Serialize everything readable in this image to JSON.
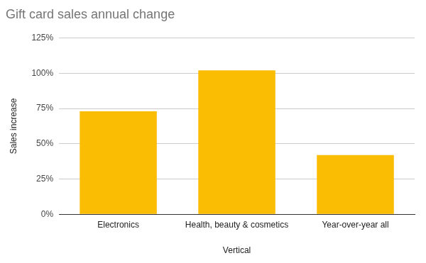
{
  "chart_data": {
    "type": "bar",
    "title": "Gift card sales annual change",
    "x_label": "Vertical",
    "y_label": "Sales increase",
    "categories": [
      "Electronics",
      "Health, beauty & cosmetics",
      "Year-over-year all"
    ],
    "values": [
      73,
      102,
      42
    ],
    "color": "#fbbc04",
    "ylim": [
      0,
      125
    ],
    "yticks": [
      {
        "value": 0,
        "label": "0%"
      },
      {
        "value": 25,
        "label": "25%"
      },
      {
        "value": 50,
        "label": "50%"
      },
      {
        "value": 75,
        "label": "75%"
      },
      {
        "value": 100,
        "label": "100%"
      },
      {
        "value": 125,
        "label": "125%"
      }
    ],
    "grid": true
  }
}
